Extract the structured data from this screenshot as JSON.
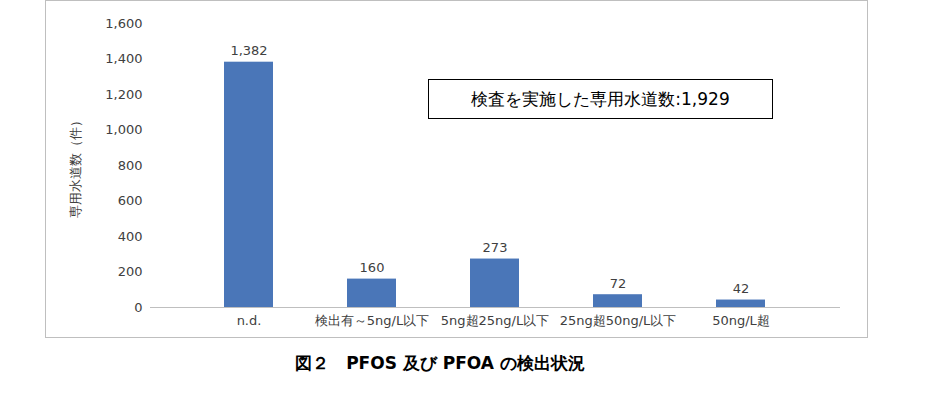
{
  "chart_data": {
    "type": "bar",
    "title": "図２　PFOS 及び PFOA の検出状況",
    "y_label": "専用水道数（件）",
    "annotation": "検査を実施した専用水道数:1,929",
    "categories": [
      "n.d.",
      "検出有～5ng/L以下",
      "5ng超25ng/L以下",
      "25ng超50ng/L以下",
      "50ng/L超"
    ],
    "values": [
      1382,
      160,
      273,
      72,
      42
    ],
    "value_labels": [
      "1,382",
      "160",
      "273",
      "72",
      "42"
    ],
    "color": "#4a76b8",
    "ylim": [
      0,
      1600
    ],
    "yticks": [
      0,
      200,
      400,
      600,
      800,
      {
        "value": 1000,
        "label": "1,000"
      },
      {
        "value": 1200,
        "label": "1,200"
      },
      {
        "value": 1400,
        "label": "1,400"
      },
      {
        "value": 1600,
        "label": "1,600"
      }
    ],
    "grid": false,
    "data_labels": true
  }
}
